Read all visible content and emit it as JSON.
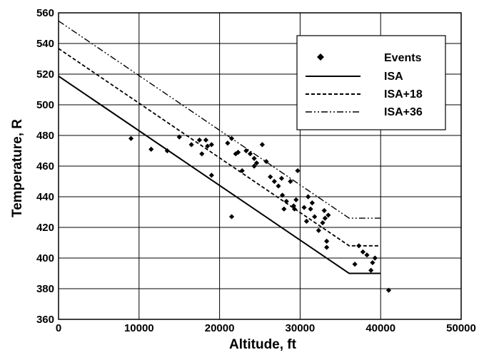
{
  "chart_data": {
    "type": "scatter",
    "title": "",
    "xlabel": "Altitude, ft",
    "ylabel": "Temperature, R",
    "xlim": [
      0,
      50000
    ],
    "ylim": [
      360,
      560
    ],
    "x_ticks": [
      "0",
      "10000",
      "20000",
      "30000",
      "40000",
      "50000"
    ],
    "y_ticks": [
      "360",
      "380",
      "400",
      "420",
      "440",
      "460",
      "480",
      "500",
      "520",
      "540",
      "560"
    ],
    "grid": true,
    "legend_position": "top-right",
    "legend": [
      "Events",
      "ISA",
      "ISA+18",
      "ISA+36"
    ],
    "series": [
      {
        "name": "Events",
        "type": "scatter",
        "marker": "diamond",
        "points": [
          [
            9000,
            478
          ],
          [
            11500,
            471
          ],
          [
            13500,
            470
          ],
          [
            15000,
            479
          ],
          [
            16500,
            474
          ],
          [
            17500,
            477
          ],
          [
            17800,
            468
          ],
          [
            18300,
            477
          ],
          [
            18500,
            473
          ],
          [
            19000,
            474
          ],
          [
            19000,
            454
          ],
          [
            21000,
            475
          ],
          [
            21500,
            427
          ],
          [
            21500,
            478
          ],
          [
            22000,
            468
          ],
          [
            22300,
            469
          ],
          [
            22800,
            457
          ],
          [
            23300,
            470
          ],
          [
            23800,
            468
          ],
          [
            24300,
            465
          ],
          [
            24300,
            460
          ],
          [
            24600,
            462
          ],
          [
            25300,
            474
          ],
          [
            25800,
            463
          ],
          [
            26300,
            453
          ],
          [
            26800,
            450
          ],
          [
            27300,
            447
          ],
          [
            27700,
            452
          ],
          [
            27800,
            441
          ],
          [
            28000,
            432
          ],
          [
            28300,
            437
          ],
          [
            28800,
            450
          ],
          [
            29200,
            434
          ],
          [
            29300,
            432
          ],
          [
            29500,
            438
          ],
          [
            29700,
            457
          ],
          [
            30500,
            433
          ],
          [
            30800,
            424
          ],
          [
            31000,
            440
          ],
          [
            31300,
            432
          ],
          [
            31500,
            436
          ],
          [
            31800,
            427
          ],
          [
            32300,
            418
          ],
          [
            32800,
            423
          ],
          [
            33000,
            431
          ],
          [
            33100,
            426
          ],
          [
            33300,
            407
          ],
          [
            33300,
            411
          ],
          [
            33500,
            428
          ],
          [
            36800,
            396
          ],
          [
            37300,
            408
          ],
          [
            37800,
            404
          ],
          [
            38300,
            402
          ],
          [
            38800,
            392
          ],
          [
            39000,
            397
          ],
          [
            39300,
            400
          ],
          [
            41000,
            379
          ]
        ]
      },
      {
        "name": "ISA",
        "type": "line",
        "style": "solid",
        "points": [
          [
            0,
            518.7
          ],
          [
            36089,
            390
          ],
          [
            40000,
            390
          ]
        ]
      },
      {
        "name": "ISA+18",
        "type": "line",
        "style": "dashed",
        "points": [
          [
            0,
            536.7
          ],
          [
            36089,
            408
          ],
          [
            40000,
            408
          ]
        ]
      },
      {
        "name": "ISA+36",
        "type": "line",
        "style": "dash-dot-dot",
        "points": [
          [
            0,
            554.7
          ],
          [
            36089,
            426
          ],
          [
            40000,
            426
          ]
        ]
      }
    ]
  }
}
